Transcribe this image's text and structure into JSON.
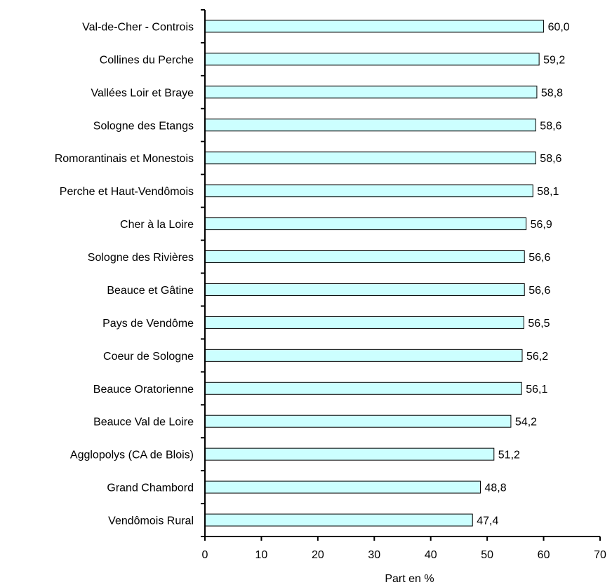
{
  "chart_data": {
    "type": "bar",
    "orientation": "horizontal",
    "categories": [
      "Val-de-Cher - Controis",
      "Collines du Perche",
      "Vallées Loir et Braye",
      "Sologne des Etangs",
      "Romorantinais et Monestois",
      "Perche et Haut-Vendômois",
      "Cher à la Loire",
      "Sologne des Rivières",
      "Beauce et Gâtine",
      "Pays de Vendôme",
      "Coeur de Sologne",
      "Beauce Oratorienne",
      "Beauce Val de Loire",
      "Agglopolys (CA de Blois)",
      "Grand Chambord",
      "Vendômois Rural"
    ],
    "values": [
      60.0,
      59.2,
      58.8,
      58.6,
      58.6,
      58.1,
      56.9,
      56.6,
      56.6,
      56.5,
      56.2,
      56.1,
      54.2,
      51.2,
      48.8,
      47.4
    ],
    "value_labels": [
      "60,0",
      "59,2",
      "58,8",
      "58,6",
      "58,6",
      "58,1",
      "56,9",
      "56,6",
      "56,6",
      "56,5",
      "56,2",
      "56,1",
      "54,2",
      "51,2",
      "48,8",
      "47,4"
    ],
    "xlim": [
      0,
      70
    ],
    "xticks": [
      0,
      10,
      20,
      30,
      40,
      50,
      60,
      70
    ],
    "xlabel": "Part en %",
    "ylabel": "",
    "title": "",
    "grid": false,
    "legend": false,
    "colors": {
      "bar_fill": "#ccffff",
      "bar_stroke": "#000000",
      "axis": "#000000"
    }
  }
}
